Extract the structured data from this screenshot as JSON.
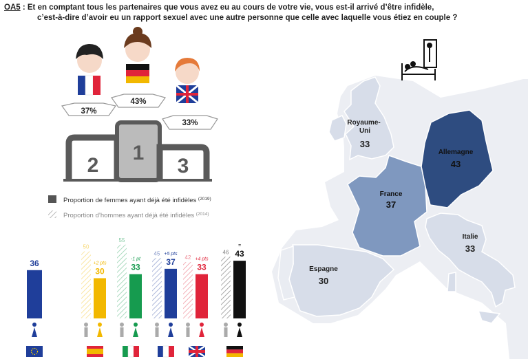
{
  "question": {
    "code": "OA5",
    "line1": " : Et en comptant tous les partenaires que vous avez eu au cours de votre vie, vous est-il arrivé d’être infidèle,",
    "line2": "c’est-à-dire d’avoir eu un rapport sexuel avec une autre personne que celle avec laquelle vous étiez en couple ?"
  },
  "podium": {
    "ranks": [
      "2",
      "1",
      "3"
    ],
    "values": [
      "37%",
      "43%",
      "33%"
    ]
  },
  "legend": {
    "women_label": "Proportion de femmes ayant déjà été infidèles",
    "women_year": "(2019)",
    "men_label": "Proportion d’hommes ayant déjà été infidèles",
    "men_year": "(2014)"
  },
  "chart_data": [
    {
      "type": "bar",
      "categories": [
        "EU",
        "Espagne",
        "Italie",
        "France",
        "Royaume-Uni",
        "Allemagne"
      ],
      "series": [
        {
          "name": "Proportion de femmes ayant déjà été infidèles (2019)",
          "values": [
            36,
            30,
            33,
            37,
            33,
            43
          ]
        },
        {
          "name": "Proportion d’hommes ayant déjà été infidèles (2014)",
          "values": [
            null,
            50,
            55,
            45,
            42,
            46
          ]
        }
      ],
      "changes": [
        "",
        "+2 pts",
        "-1 pt",
        "+5 pts",
        "+4 pts",
        "="
      ],
      "colors": [
        "#1f3e9a",
        "#f2b800",
        "#169b4f",
        "#1f3e9a",
        "#e0243a",
        "#111111"
      ],
      "ylim": [
        0,
        60
      ]
    },
    {
      "type": "map",
      "regions": [
        {
          "label": "Royaume-\nUni",
          "value": 33,
          "color": "#d7dde9"
        },
        {
          "label": "Allemagne",
          "value": 43,
          "color": "#2e4c80"
        },
        {
          "label": "France",
          "value": 37,
          "color": "#7f98bf"
        },
        {
          "label": "Italie",
          "value": 33,
          "color": "#d7dde9"
        },
        {
          "label": "Espagne",
          "value": 30,
          "color": "#d7dde9"
        }
      ]
    }
  ]
}
